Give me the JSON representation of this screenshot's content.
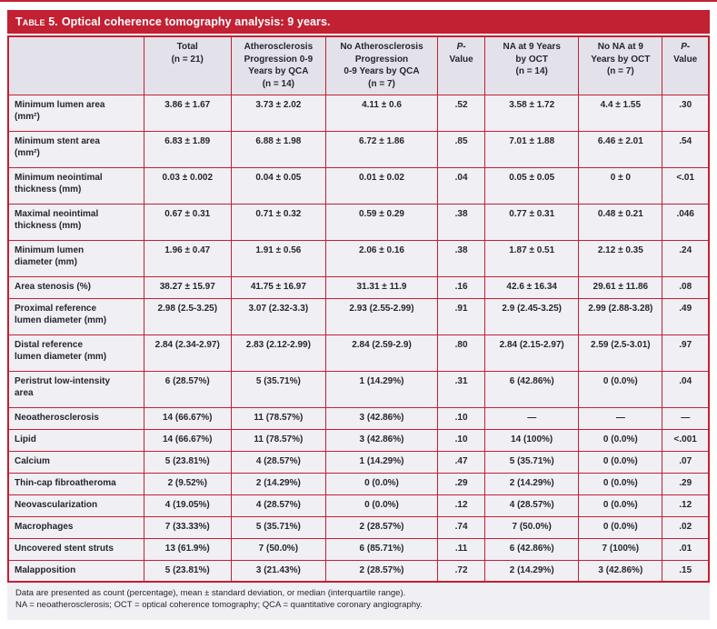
{
  "title": {
    "prefix": "Table 5.",
    "text": "Optical coherence tomography analysis: 9 years."
  },
  "table": {
    "columns": [
      {
        "label": ""
      },
      {
        "label": "Total\n(n = 21)"
      },
      {
        "label": "Atherosclerosis\nProgression 0-9\nYears by QCA\n(n = 14)"
      },
      {
        "label": "No Atherosclerosis\nProgression\n0-9 Years by QCA\n(n = 7)"
      },
      {
        "label": "P-\nValue",
        "italic": true
      },
      {
        "label": "NA at 9 Years\nby OCT\n(n = 14)"
      },
      {
        "label": "No NA at 9\nYears by OCT\n(n = 7)"
      },
      {
        "label": "P-\nValue",
        "italic": true
      }
    ],
    "rows": [
      {
        "label": "Minimum lumen area\n(mm²)",
        "values": [
          "3.86 ± 1.67",
          "3.73 ± 2.02",
          "4.11 ± 0.6",
          ".52",
          "3.58 ± 1.72",
          "4.4 ± 1.55",
          ".30"
        ]
      },
      {
        "label": "Minimum stent area\n(mm²)",
        "values": [
          "6.83 ± 1.89",
          "6.88 ± 1.98",
          "6.72 ± 1.86",
          ".85",
          "7.01 ± 1.88",
          "6.46 ± 2.01",
          ".54"
        ]
      },
      {
        "label": "Minimum neointimal\nthickness (mm)",
        "values": [
          "0.03 ± 0.002",
          "0.04 ± 0.05",
          "0.01 ± 0.02",
          ".04",
          "0.05 ± 0.05",
          "0 ± 0",
          "<.01"
        ]
      },
      {
        "label": "Maximal neointimal\nthickness (mm)",
        "values": [
          "0.67 ± 0.31",
          "0.71 ± 0.32",
          "0.59 ± 0.29",
          ".38",
          "0.77 ± 0.31",
          "0.48 ± 0.21",
          ".046"
        ]
      },
      {
        "label": "Minimum lumen\ndiameter (mm)",
        "values": [
          "1.96 ± 0.47",
          "1.91 ± 0.56",
          "2.06 ± 0.16",
          ".38",
          "1.87 ± 0.51",
          "2.12 ± 0.35",
          ".24"
        ]
      },
      {
        "label": "Area stenosis (%)",
        "values": [
          "38.27 ± 15.97",
          "41.75 ± 16.97",
          "31.31 ± 11.9",
          ".16",
          "42.6 ± 16.34",
          "29.61 ± 11.86",
          ".08"
        ]
      },
      {
        "label": "Proximal reference\nlumen diameter (mm)",
        "values": [
          "2.98 (2.5-3.25)",
          "3.07 (2.32-3.3)",
          "2.93 (2.55-2.99)",
          ".91",
          "2.9 (2.45-3.25)",
          "2.99 (2.88-3.28)",
          ".49"
        ]
      },
      {
        "label": "Distal reference\nlumen diameter (mm)",
        "values": [
          "2.84 (2.34-2.97)",
          "2.83 (2.12-2.99)",
          "2.84 (2.59-2.9)",
          ".80",
          "2.84 (2.15-2.97)",
          "2.59 (2.5-3.01)",
          ".97"
        ]
      },
      {
        "label": "Peristrut low-intensity\narea",
        "values": [
          "6 (28.57%)",
          "5 (35.71%)",
          "1 (14.29%)",
          ".31",
          "6 (42.86%)",
          "0 (0.0%)",
          ".04"
        ]
      },
      {
        "label": "Neoatherosclerosis",
        "values": [
          "14 (66.67%)",
          "11 (78.57%)",
          "3 (42.86%)",
          ".10",
          "—",
          "—",
          "—"
        ]
      },
      {
        "label": "Lipid",
        "values": [
          "14 (66.67%)",
          "11 (78.57%)",
          "3 (42.86%)",
          ".10",
          "14 (100%)",
          "0 (0.0%)",
          "<.001"
        ]
      },
      {
        "label": "Calcium",
        "values": [
          "5 (23.81%)",
          "4 (28.57%)",
          "1 (14.29%)",
          ".47",
          "5 (35.71%)",
          "0 (0.0%)",
          ".07"
        ]
      },
      {
        "label": "Thin-cap fibroatheroma",
        "values": [
          "2 (9.52%)",
          "2 (14.29%)",
          "0 (0.0%)",
          ".29",
          "2 (14.29%)",
          "0 (0.0%)",
          ".29"
        ]
      },
      {
        "label": "Neovascularization",
        "values": [
          "4 (19.05%)",
          "4 (28.57%)",
          "0 (0.0%)",
          ".12",
          "4 (28.57%)",
          "0 (0.0%)",
          ".12"
        ]
      },
      {
        "label": "Macrophages",
        "values": [
          "7 (33.33%)",
          "5 (35.71%)",
          "2 (28.57%)",
          ".74",
          "7 (50.0%)",
          "0 (0.0%)",
          ".02"
        ]
      },
      {
        "label": "Uncovered stent struts",
        "values": [
          "13 (61.9%)",
          "7 (50.0%)",
          "6 (85.71%)",
          ".11",
          "6 (42.86%)",
          "7 (100%)",
          ".01"
        ]
      },
      {
        "label": "Malapposition",
        "values": [
          "5 (23.81%)",
          "3 (21.43%)",
          "2 (28.57%)",
          ".72",
          "2 (14.29%)",
          "3 (42.86%)",
          ".15"
        ]
      }
    ]
  },
  "footnotes": {
    "line1": "Data are presented as count (percentage), mean ± standard deviation, or median (interquartile range).",
    "line2": "NA = neoatherosclerosis; OCT = optical coherence tomography; QCA = quantitative coronary angiography."
  },
  "colors": {
    "accent_red": "#C22033",
    "header_bg": "#E3E2EB",
    "cell_bg": "#F0EFF4",
    "text": "#26262E"
  }
}
